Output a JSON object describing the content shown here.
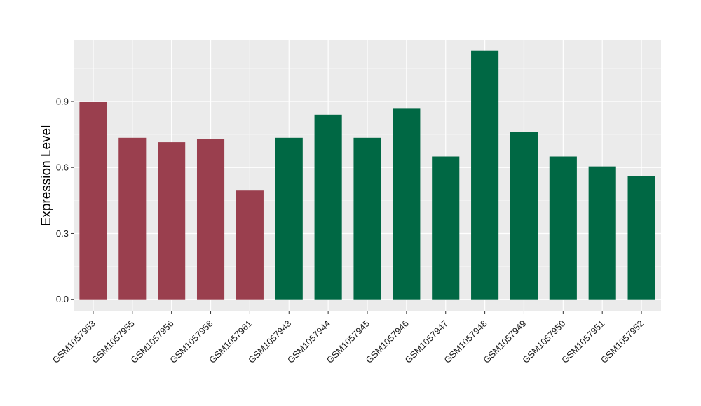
{
  "chart_data": {
    "type": "bar",
    "ylabel": "Expression Level",
    "xlabel": "",
    "ylim": [
      -0.055,
      1.18
    ],
    "yticks": [
      0.0,
      0.3,
      0.6,
      0.9
    ],
    "ytick_labels": [
      "0.0",
      "0.3",
      "0.6",
      "0.9"
    ],
    "grid": true,
    "background": "#ebebeb",
    "categories": [
      "GSM1057953",
      "GSM1057955",
      "GSM1057956",
      "GSM1057958",
      "GSM1057961",
      "GSM1057943",
      "GSM1057944",
      "GSM1057945",
      "GSM1057946",
      "GSM1057947",
      "GSM1057948",
      "GSM1057949",
      "GSM1057950",
      "GSM1057951",
      "GSM1057952"
    ],
    "values": [
      0.9,
      0.735,
      0.715,
      0.73,
      0.495,
      0.735,
      0.84,
      0.735,
      0.87,
      0.65,
      1.13,
      0.76,
      0.65,
      0.605,
      0.56
    ],
    "groups": [
      "A",
      "A",
      "A",
      "A",
      "A",
      "B",
      "B",
      "B",
      "B",
      "B",
      "B",
      "B",
      "B",
      "B",
      "B"
    ],
    "group_colors": {
      "A": "#9a3f4e",
      "B": "#006844"
    }
  }
}
